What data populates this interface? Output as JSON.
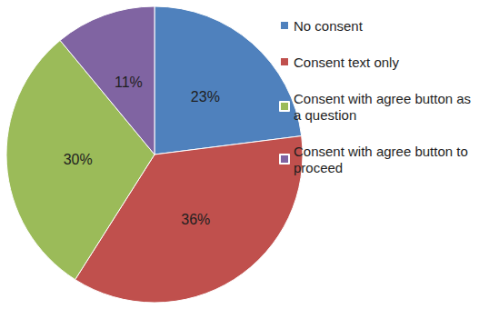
{
  "chart_data": {
    "type": "pie",
    "categories": [
      "No consent",
      "Consent text only",
      "Consent with agree button as a question",
      "Consent with agree button to proceed"
    ],
    "values": [
      23,
      36,
      30,
      11
    ],
    "value_labels": [
      "23%",
      "36%",
      "30%",
      "11%"
    ],
    "colors": [
      "#4f81bd",
      "#c0504d",
      "#9bbb59",
      "#8064a2"
    ],
    "data_labels": true,
    "legend": "right"
  }
}
